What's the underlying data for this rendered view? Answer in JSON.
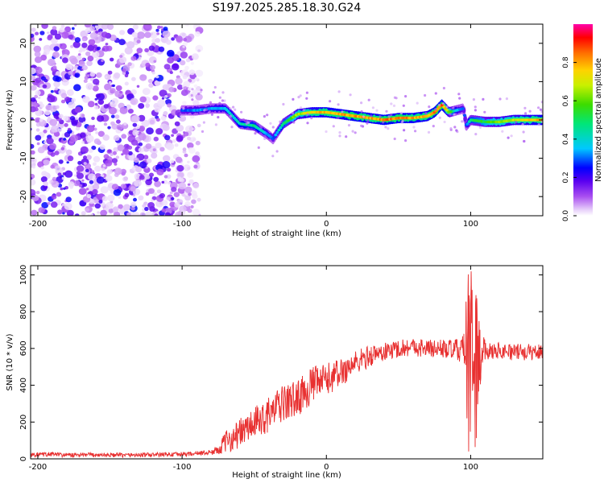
{
  "title": "S197.2025.285.18.30.G24",
  "chart_data": [
    {
      "type": "heatmap",
      "name": "spectrogram",
      "xlabel": "Height of straight line (km)",
      "ylabel": "Frequency (Hz)",
      "xlim": [
        -205,
        150
      ],
      "ylim": [
        -25,
        25
      ],
      "xticks": [
        -200,
        -100,
        0,
        100
      ],
      "yticks": [
        -20,
        -10,
        0,
        10,
        20
      ],
      "colorbar": {
        "label": "Normalized spectral amplitude",
        "range": [
          0,
          1
        ],
        "ticks": [
          0.0,
          0.2,
          0.4,
          0.6,
          0.8
        ],
        "tick_labels": [
          "0.0",
          "0.2",
          "0.4",
          "0.6",
          "0.8"
        ]
      },
      "noise_region": {
        "x_range": [
          -205,
          -88
        ],
        "level": 0.15
      },
      "ridge": {
        "x": [
          -100,
          -90,
          -80,
          -70,
          -60,
          -50,
          -40,
          -37,
          -30,
          -20,
          -10,
          0,
          10,
          20,
          30,
          40,
          50,
          60,
          70,
          75,
          80,
          85,
          90,
          95,
          97,
          100,
          110,
          120,
          130,
          140,
          150
        ],
        "freq": [
          2.5,
          2.5,
          3.0,
          3.0,
          -1.0,
          -1.5,
          -4.0,
          -5.0,
          -1.0,
          1.5,
          2.0,
          2.0,
          1.5,
          1.0,
          0.5,
          0.0,
          0.5,
          0.5,
          1.0,
          2.0,
          4.0,
          2.0,
          2.5,
          3.0,
          -1.5,
          0.0,
          -0.5,
          -0.5,
          0.0,
          0.0,
          0.0
        ],
        "amplitude": [
          0.3,
          0.35,
          0.35,
          0.4,
          0.45,
          0.5,
          0.35,
          0.3,
          0.5,
          0.7,
          0.8,
          0.85,
          0.85,
          0.9,
          0.85,
          0.9,
          0.9,
          0.85,
          0.85,
          0.9,
          0.95,
          0.7,
          0.4,
          0.3,
          0.3,
          0.5,
          0.6,
          0.7,
          0.75,
          0.8,
          0.85
        ]
      }
    },
    {
      "type": "line",
      "name": "snr",
      "xlabel": "Height of straight line (km)",
      "ylabel": "SNR (10 * v/v)",
      "xlim": [
        -205,
        150
      ],
      "ylim": [
        0,
        1050
      ],
      "xticks": [
        -200,
        -100,
        0,
        100
      ],
      "yticks": [
        0,
        200,
        400,
        600,
        800,
        1000
      ],
      "color": "#e83030",
      "series": [
        {
          "name": "SNR",
          "x": [
            -205,
            -190,
            -180,
            -160,
            -140,
            -120,
            -100,
            -90,
            -80,
            -75,
            -70,
            -60,
            -50,
            -40,
            -30,
            -20,
            -10,
            0,
            10,
            20,
            30,
            40,
            50,
            60,
            70,
            80,
            90,
            95,
            98,
            100,
            102,
            104,
            106,
            110,
            120,
            130,
            140,
            150
          ],
          "mean": [
            22,
            25,
            20,
            22,
            20,
            22,
            25,
            30,
            35,
            50,
            90,
            140,
            190,
            240,
            300,
            330,
            400,
            430,
            470,
            520,
            560,
            580,
            600,
            610,
            600,
            600,
            590,
            600,
            500,
            550,
            550,
            500,
            560,
            590,
            590,
            580,
            580,
            580
          ],
          "noise": [
            12,
            12,
            12,
            12,
            12,
            12,
            12,
            12,
            15,
            25,
            60,
            80,
            90,
            95,
            100,
            100,
            100,
            90,
            80,
            70,
            60,
            50,
            50,
            50,
            50,
            50,
            60,
            80,
            500,
            520,
            520,
            500,
            200,
            50,
            45,
            45,
            45,
            45
          ]
        }
      ]
    }
  ]
}
